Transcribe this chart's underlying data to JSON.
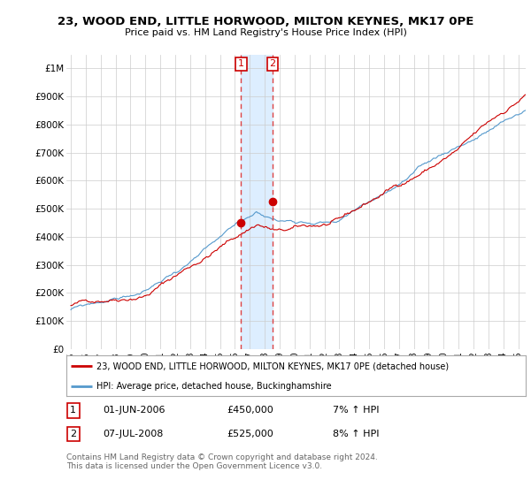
{
  "title": "23, WOOD END, LITTLE HORWOOD, MILTON KEYNES, MK17 0PE",
  "subtitle": "Price paid vs. HM Land Registry's House Price Index (HPI)",
  "ylabel_ticks": [
    "£0",
    "£100K",
    "£200K",
    "£300K",
    "£400K",
    "£500K",
    "£600K",
    "£700K",
    "£800K",
    "£900K",
    "£1M"
  ],
  "ytick_vals": [
    0,
    100000,
    200000,
    300000,
    400000,
    500000,
    600000,
    700000,
    800000,
    900000,
    1000000
  ],
  "ylim": [
    0,
    1050000
  ],
  "xlim_start": 1994.7,
  "xlim_end": 2025.5,
  "legend_line1": "23, WOOD END, LITTLE HORWOOD, MILTON KEYNES, MK17 0PE (detached house)",
  "legend_line2": "HPI: Average price, detached house, Buckinghamshire",
  "sale1_date": "01-JUN-2006",
  "sale1_price": "£450,000",
  "sale1_hpi": "7% ↑ HPI",
  "sale1_x": 2006.42,
  "sale1_y": 450000,
  "sale2_date": "07-JUL-2008",
  "sale2_price": "£525,000",
  "sale2_hpi": "8% ↑ HPI",
  "sale2_x": 2008.52,
  "sale2_y": 525000,
  "line_color_red": "#cc0000",
  "line_color_blue": "#5599cc",
  "vline_color": "#dd4444",
  "shade_color": "#ddeeff",
  "footer_text": "Contains HM Land Registry data © Crown copyright and database right 2024.\nThis data is licensed under the Open Government Licence v3.0.",
  "background_color": "#ffffff",
  "grid_color": "#cccccc"
}
